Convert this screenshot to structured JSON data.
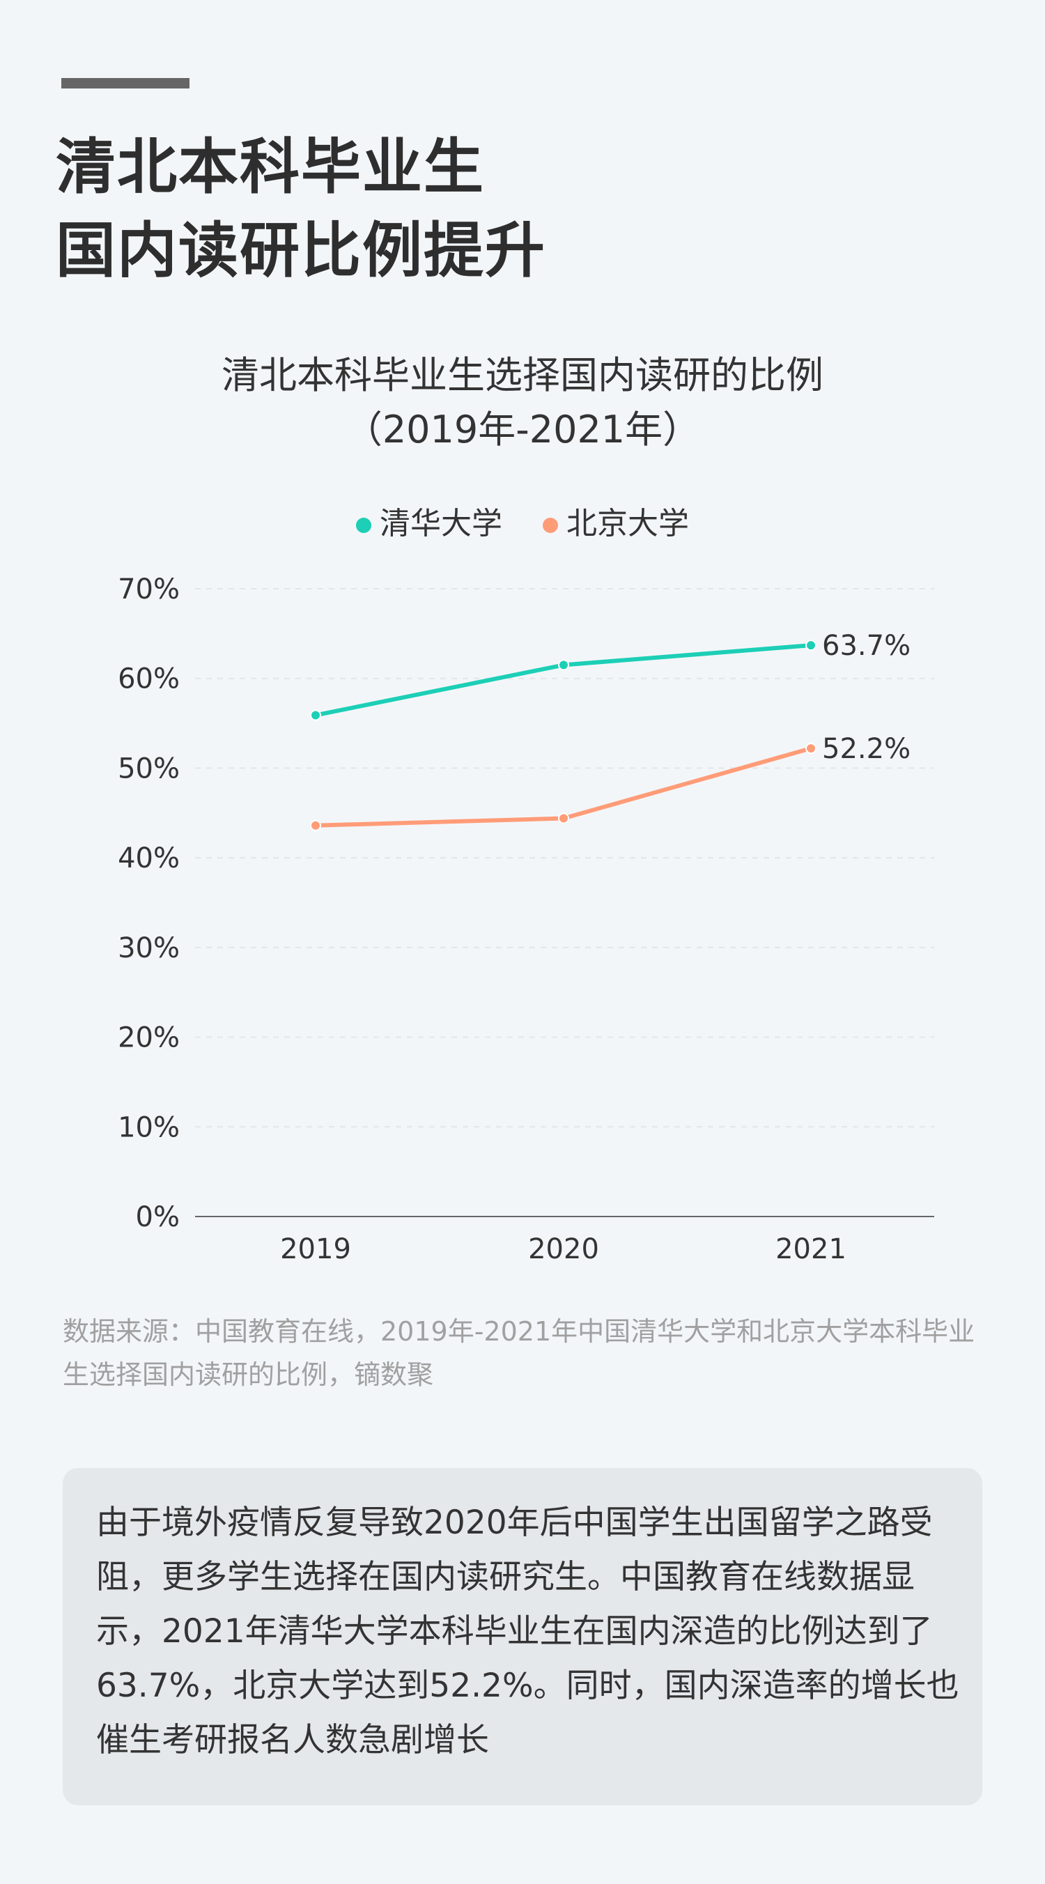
{
  "header": {
    "title_line1": "清北本科毕业生",
    "title_line2": "国内读研比例提升"
  },
  "chart_data": {
    "type": "line",
    "title": "清北本科毕业生选择国内读研的比例",
    "subtitle": "（2019年-2021年）",
    "categories": [
      "2019",
      "2020",
      "2021"
    ],
    "series": [
      {
        "name": "清华大学",
        "color": "#1ccfb6",
        "values": [
          55.9,
          61.5,
          63.7
        ],
        "end_label": "63.7%"
      },
      {
        "name": "北京大学",
        "color": "#ff9c78",
        "values": [
          43.6,
          44.4,
          52.2
        ],
        "end_label": "52.2%"
      }
    ],
    "ylim": [
      0,
      70
    ],
    "yticks": [
      "0%",
      "10%",
      "20%",
      "30%",
      "40%",
      "50%",
      "60%",
      "70%"
    ],
    "grid": true,
    "legend": "top"
  },
  "source": "数据来源：中国教育在线，2019年-2021年中国清华大学和北京大学本科毕业生选择国内读研的比例，镝数聚",
  "note": "由于境外疫情反复导致2020年后中国学生出国留学之路受阻，更多学生选择在国内读研究生。中国教育在线数据显示，2021年清华大学本科毕业生在国内深造的比例达到了63.7%，北京大学达到52.2%。同时，国内深造率的增长也催生考研报名人数急剧增长"
}
